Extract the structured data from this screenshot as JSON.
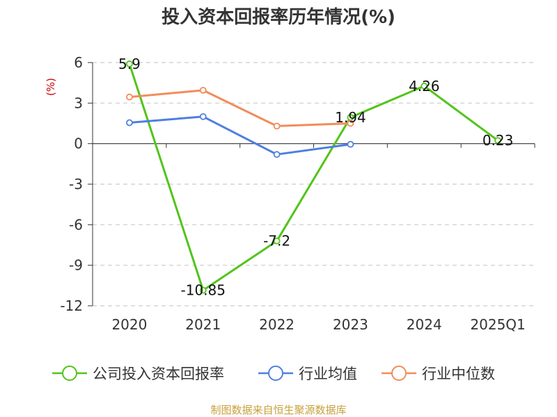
{
  "chart_data": {
    "type": "line",
    "title": "投入资本回报率历年情况(%)",
    "ylabel": "(%)",
    "xlabel": "",
    "categories": [
      "2020",
      "2021",
      "2022",
      "2023",
      "2024",
      "2025Q1"
    ],
    "ylim": [
      -12,
      6
    ],
    "yticks": [
      6,
      3,
      0,
      -3,
      -6,
      -9,
      -12
    ],
    "ytick_labels": [
      "6",
      "3",
      "0",
      "-3",
      "-6",
      "-9",
      "-12"
    ],
    "grid": true,
    "legend_position": "bottom",
    "series": [
      {
        "name": "公司投入资本回报率",
        "color": "#52c41a",
        "values": [
          5.9,
          -10.85,
          -7.2,
          1.94,
          4.26,
          0.23
        ],
        "data_labels": [
          "5.9",
          "-10.85",
          "-7.2",
          "1.94",
          "4.26",
          "0.23"
        ]
      },
      {
        "name": "行业均值",
        "color": "#4f7fdf",
        "values": [
          1.55,
          2.0,
          -0.8,
          -0.05,
          null,
          null
        ]
      },
      {
        "name": "行业中位数",
        "color": "#f28c5a",
        "values": [
          3.45,
          3.95,
          1.3,
          1.5,
          null,
          null
        ]
      }
    ]
  },
  "source": "制图数据来自恒生聚源数据库"
}
